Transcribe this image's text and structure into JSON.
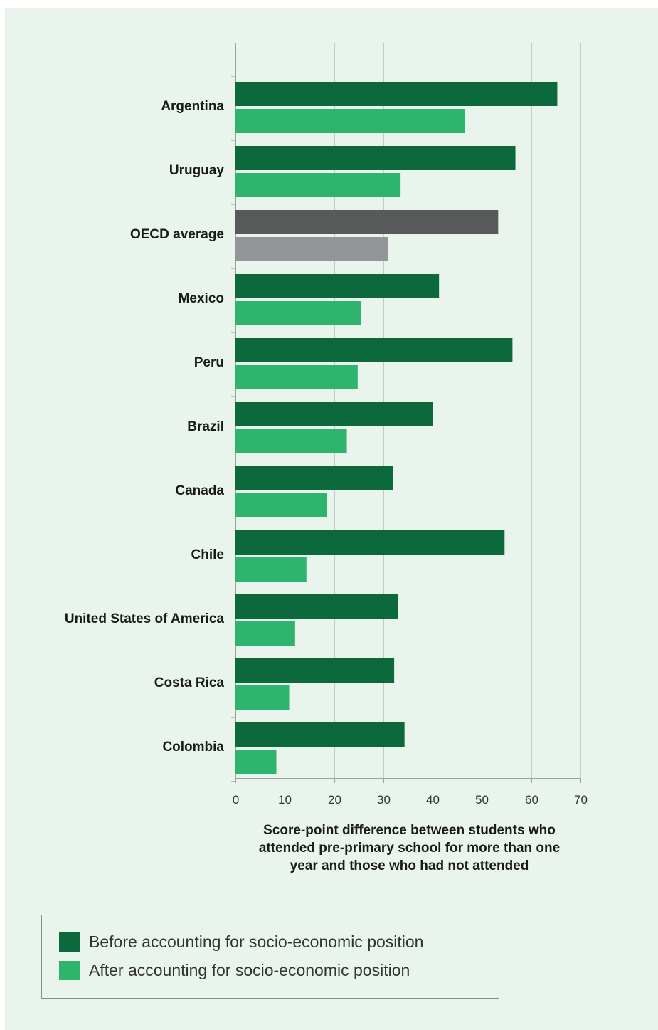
{
  "chart_data": {
    "type": "bar",
    "orientation": "horizontal",
    "categories": [
      "Argentina",
      "Uruguay",
      "OECD average",
      "Mexico",
      "Peru",
      "Brazil",
      "Canada",
      "Chile",
      "United States of America",
      "Costa Rica",
      "Colombia"
    ],
    "series": [
      {
        "name": "Before accounting for socio-economic position",
        "color": "#0c693c",
        "values": [
          65.3,
          56.8,
          53.3,
          41.3,
          56.2,
          40.0,
          31.9,
          54.6,
          33.0,
          32.2,
          34.3
        ]
      },
      {
        "name": "After accounting for socio-economic position",
        "color": "#2fb46d",
        "values": [
          46.6,
          33.5,
          31.0,
          25.5,
          24.8,
          22.6,
          18.6,
          14.4,
          12.1,
          10.9,
          8.3
        ]
      }
    ],
    "highlight": {
      "category": "OECD average",
      "colors": [
        "#58595b",
        "#939598"
      ]
    },
    "xlabel": "Score-point difference between students who attended pre-primary school for more than one year and those who had not attended",
    "xlabel_lines": [
      "Score-point difference between students who",
      "attended pre-primary school for more than one",
      "year and those who had not attended"
    ],
    "xlim": [
      0,
      70
    ],
    "xticks": [
      "0",
      "10",
      "20",
      "30",
      "40",
      "50",
      "60",
      "70"
    ],
    "grid": true,
    "legend_position": "bottom"
  },
  "legend": {
    "items": [
      {
        "label": "Before accounting for socio-economic position",
        "color": "#0c693c"
      },
      {
        "label": "After accounting for socio-economic position",
        "color": "#2fb46d"
      }
    ]
  },
  "colors": {
    "panel_background": "#e8f4ec"
  }
}
